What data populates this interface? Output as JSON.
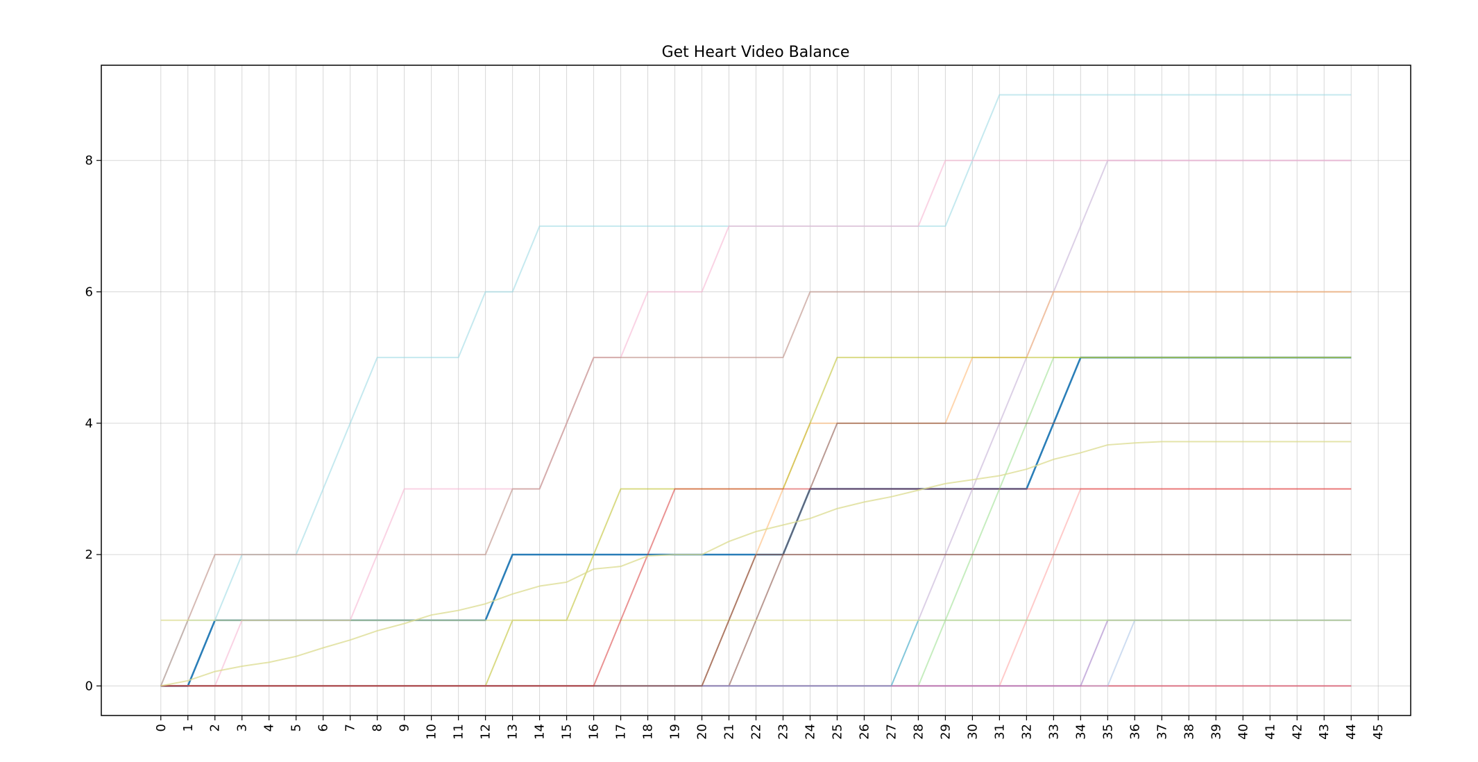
{
  "chart_data": {
    "type": "line",
    "title": "Get Heart Video Balance",
    "xlabel": "",
    "ylabel": "",
    "x": [
      0,
      1,
      2,
      3,
      4,
      5,
      6,
      7,
      8,
      9,
      10,
      11,
      12,
      13,
      14,
      15,
      16,
      17,
      18,
      19,
      20,
      21,
      22,
      23,
      24,
      25,
      26,
      27,
      28,
      29,
      30,
      31,
      32,
      33,
      34,
      35,
      36,
      37,
      38,
      39,
      40,
      41,
      42,
      43,
      44
    ],
    "xticks": [
      "0",
      "1",
      "2",
      "3",
      "4",
      "5",
      "6",
      "7",
      "8",
      "9",
      "10",
      "11",
      "12",
      "13",
      "14",
      "15",
      "16",
      "17",
      "18",
      "19",
      "20",
      "21",
      "22",
      "23",
      "24",
      "25",
      "26",
      "27",
      "28",
      "29",
      "30",
      "31",
      "32",
      "33",
      "34",
      "35",
      "36",
      "37",
      "38",
      "39",
      "40",
      "41",
      "42",
      "43",
      "44",
      "45"
    ],
    "yticks": [
      "0",
      "2",
      "4",
      "6",
      "8"
    ],
    "xlim": [
      -2.2,
      46.2
    ],
    "ylim": [
      -0.45,
      9.45
    ],
    "grid": true,
    "legend": "none",
    "series": [
      {
        "color": "#1f77b4",
        "opacity": 0.95,
        "width": 2.6,
        "values": [
          0,
          0,
          1,
          1,
          1,
          1,
          1,
          1,
          1,
          1,
          1,
          1,
          1,
          2,
          2,
          2,
          2,
          2,
          2,
          2,
          2,
          2,
          2,
          2,
          3,
          3,
          3,
          3,
          3,
          3,
          3,
          3,
          3,
          4,
          5,
          5,
          5,
          5,
          5,
          5,
          5,
          5,
          5,
          5,
          5
        ]
      },
      {
        "color": "#9edae5",
        "opacity": 0.6,
        "width": 2,
        "values": [
          0,
          1,
          1,
          2,
          2,
          2,
          3,
          4,
          5,
          5,
          5,
          5,
          6,
          6,
          7,
          7,
          7,
          7,
          7,
          7,
          7,
          7,
          7,
          7,
          7,
          7,
          7,
          7,
          7,
          7,
          8,
          9,
          9,
          9,
          9,
          9,
          9,
          9,
          9,
          9,
          9,
          9,
          9,
          9,
          9
        ]
      },
      {
        "color": "#c5b0d5",
        "opacity": 0.6,
        "width": 2,
        "values": [
          0,
          0,
          0,
          0,
          0,
          0,
          0,
          0,
          0,
          0,
          0,
          0,
          0,
          0,
          0,
          0,
          0,
          0,
          0,
          0,
          0,
          0,
          0,
          0,
          0,
          0,
          0,
          0,
          1,
          2,
          3,
          4,
          5,
          6,
          7,
          8,
          8,
          8,
          8,
          8,
          8,
          8,
          8,
          8,
          8
        ]
      },
      {
        "color": "#f7b6d2",
        "opacity": 0.6,
        "width": 2,
        "values": [
          0,
          0,
          0,
          1,
          1,
          1,
          1,
          1,
          2,
          3,
          3,
          3,
          3,
          3,
          3,
          4,
          5,
          5,
          6,
          6,
          6,
          7,
          7,
          7,
          7,
          7,
          7,
          7,
          7,
          8,
          8,
          8,
          8,
          8,
          8,
          8,
          8,
          8,
          8,
          8,
          8,
          8,
          8,
          8,
          8
        ]
      },
      {
        "color": "#c49c94",
        "opacity": 0.7,
        "width": 2,
        "values": [
          0,
          1,
          2,
          2,
          2,
          2,
          2,
          2,
          2,
          2,
          2,
          2,
          2,
          3,
          3,
          4,
          5,
          5,
          5,
          5,
          5,
          5,
          5,
          5,
          6,
          6,
          6,
          6,
          6,
          6,
          6,
          6,
          6,
          6,
          6,
          6,
          6,
          6,
          6,
          6,
          6,
          6,
          6,
          6,
          6
        ]
      },
      {
        "color": "#ff9896",
        "opacity": 0.5,
        "width": 2,
        "values": [
          0,
          0,
          0,
          0,
          0,
          0,
          0,
          0,
          0,
          0,
          0,
          0,
          0,
          0,
          0,
          0,
          0,
          0,
          0,
          0,
          0,
          0,
          0,
          0,
          0,
          0,
          0,
          0,
          0,
          0,
          0,
          0,
          1,
          2,
          3,
          3,
          3,
          3,
          3,
          3,
          3,
          3,
          3,
          3,
          3
        ]
      },
      {
        "color": "#98df8a",
        "opacity": 0.55,
        "width": 2,
        "values": [
          0,
          0,
          0,
          0,
          0,
          0,
          0,
          0,
          0,
          0,
          0,
          0,
          0,
          0,
          0,
          0,
          0,
          0,
          0,
          0,
          0,
          0,
          0,
          0,
          0,
          0,
          0,
          0,
          0,
          1,
          2,
          3,
          4,
          5,
          5,
          5,
          5,
          5,
          5,
          5,
          5,
          5,
          5,
          5,
          5
        ]
      },
      {
        "color": "#ffbb78",
        "opacity": 0.6,
        "width": 2,
        "values": [
          0,
          0,
          0,
          0,
          0,
          0,
          0,
          0,
          0,
          0,
          0,
          0,
          0,
          0,
          0,
          0,
          0,
          0,
          0,
          0,
          0,
          1,
          2,
          3,
          4,
          4,
          4,
          4,
          4,
          4,
          5,
          5,
          5,
          6,
          6,
          6,
          6,
          6,
          6,
          6,
          6,
          6,
          6,
          6,
          6
        ]
      },
      {
        "color": "#dbdb8d",
        "opacity": 0.55,
        "width": 2,
        "values": [
          0,
          0,
          0,
          0,
          0,
          0,
          0,
          0,
          0,
          0,
          0,
          0,
          0,
          0,
          0,
          0,
          0,
          0,
          0,
          0,
          0,
          0,
          0,
          0,
          0,
          0,
          0,
          0,
          0,
          0,
          0,
          0,
          0,
          0,
          0,
          0,
          0,
          0,
          0,
          0,
          0,
          0,
          0,
          0,
          0
        ]
      },
      {
        "color": "#8c564b",
        "opacity": 0.6,
        "width": 2,
        "values": [
          0,
          0,
          0,
          0,
          0,
          0,
          0,
          0,
          0,
          0,
          0,
          0,
          0,
          0,
          0,
          0,
          0,
          0,
          0,
          0,
          0,
          0,
          1,
          2,
          3,
          4,
          4,
          4,
          4,
          4,
          4,
          4,
          4,
          4,
          4,
          4,
          4,
          4,
          4,
          4,
          4,
          4,
          4,
          4,
          4
        ]
      },
      {
        "color": "#bcbd22",
        "opacity": 0.55,
        "width": 2,
        "values": [
          0,
          0,
          0,
          0,
          0,
          0,
          0,
          0,
          0,
          0,
          0,
          0,
          0,
          1,
          1,
          1,
          2,
          3,
          3,
          3,
          3,
          3,
          3,
          3,
          4,
          5,
          5,
          5,
          5,
          5,
          5,
          5,
          5,
          5,
          5,
          5,
          5,
          5,
          5,
          5,
          5,
          5,
          5,
          5,
          5
        ]
      },
      {
        "color": "#d62728",
        "opacity": 0.55,
        "width": 2,
        "values": [
          0,
          0,
          0,
          0,
          0,
          0,
          0,
          0,
          0,
          0,
          0,
          0,
          0,
          0,
          0,
          0,
          0,
          0,
          0,
          0,
          0,
          0,
          0,
          0,
          0,
          0,
          0,
          0,
          0,
          0,
          0,
          0,
          0,
          0,
          0,
          0,
          0,
          0,
          0,
          0,
          0,
          0,
          0,
          0,
          0
        ]
      },
      {
        "color": "#aec7e8",
        "opacity": 0.6,
        "width": 2,
        "values": [
          0,
          0,
          0,
          0,
          0,
          0,
          0,
          0,
          0,
          0,
          0,
          0,
          0,
          0,
          0,
          0,
          0,
          0,
          0,
          0,
          0,
          0,
          0,
          0,
          0,
          0,
          0,
          0,
          0,
          0,
          0,
          0,
          0,
          0,
          0,
          0,
          1,
          1,
          1,
          1,
          1,
          1,
          1,
          1,
          1
        ]
      },
      {
        "color": "#9467bd",
        "opacity": 0.5,
        "width": 2,
        "values": [
          0,
          0,
          0,
          0,
          0,
          0,
          0,
          0,
          0,
          0,
          0,
          0,
          0,
          0,
          0,
          0,
          0,
          0,
          0,
          0,
          0,
          0,
          0,
          0,
          0,
          0,
          0,
          0,
          0,
          0,
          0,
          0,
          0,
          0,
          0,
          1,
          1,
          1,
          1,
          1,
          1,
          1,
          1,
          1,
          1
        ]
      },
      {
        "color": "#17becf",
        "opacity": 0.45,
        "width": 2,
        "values": [
          0,
          0,
          0,
          0,
          0,
          0,
          0,
          0,
          0,
          0,
          0,
          0,
          0,
          0,
          0,
          0,
          0,
          0,
          0,
          0,
          0,
          0,
          0,
          0,
          0,
          0,
          0,
          0,
          1,
          1,
          1,
          1,
          1,
          1,
          1,
          1,
          1,
          1,
          1,
          1,
          1,
          1,
          1,
          1,
          1
        ]
      },
      {
        "color": "#e377c2",
        "opacity": 0.4,
        "width": 2,
        "values": [
          0,
          0,
          0,
          0,
          0,
          0,
          0,
          0,
          0,
          0,
          0,
          0,
          0,
          0,
          0,
          0,
          0,
          0,
          0,
          0,
          0,
          0,
          0,
          0,
          0,
          0,
          0,
          0,
          0,
          0,
          0,
          0,
          0,
          0,
          0,
          0,
          0,
          0,
          0,
          0,
          0,
          0,
          0,
          0,
          0
        ]
      },
      {
        "color": "#dbdb8d",
        "opacity": 0.7,
        "width": 2,
        "values": [
          1,
          1,
          1,
          1,
          1,
          1,
          1,
          1,
          1,
          1,
          1,
          1,
          1,
          1,
          1,
          1,
          1,
          1,
          1,
          1,
          1,
          1,
          1,
          1,
          1,
          1,
          1,
          1,
          1,
          1,
          1,
          1,
          1,
          1,
          1,
          1,
          1,
          1,
          1,
          1,
          1,
          1,
          1,
          1,
          1
        ]
      },
      {
        "color": "#8c564b",
        "opacity": 0.7,
        "width": 2,
        "values": [
          0,
          0,
          0,
          0,
          0,
          0,
          0,
          0,
          0,
          0,
          0,
          0,
          0,
          0,
          0,
          0,
          0,
          0,
          0,
          0,
          0,
          1,
          2,
          2,
          2,
          2,
          2,
          2,
          2,
          2,
          2,
          2,
          2,
          2,
          2,
          2,
          2,
          2,
          2,
          2,
          2,
          2,
          2,
          2,
          2
        ]
      },
      {
        "color": "#d62728",
        "opacity": 0.5,
        "width": 2,
        "values": [
          0,
          0,
          0,
          0,
          0,
          0,
          0,
          0,
          0,
          0,
          0,
          0,
          0,
          0,
          0,
          0,
          0,
          1,
          2,
          3,
          3,
          3,
          3,
          3,
          3,
          3,
          3,
          3,
          3,
          3,
          3,
          3,
          3,
          3,
          3,
          3,
          3,
          3,
          3,
          3,
          3,
          3,
          3,
          3,
          3
        ]
      },
      {
        "color": "#dbdb8d",
        "opacity": 0.75,
        "width": 2,
        "values": [
          0,
          0.08,
          0.22,
          0.3,
          0.36,
          0.45,
          0.58,
          0.7,
          0.84,
          0.95,
          1.08,
          1.15,
          1.25,
          1.4,
          1.52,
          1.58,
          1.78,
          1.82,
          1.98,
          2.0,
          2.0,
          2.2,
          2.35,
          2.45,
          2.55,
          2.7,
          2.8,
          2.88,
          2.98,
          3.08,
          3.14,
          3.2,
          3.3,
          3.45,
          3.55,
          3.67,
          3.7,
          3.72,
          3.72,
          3.72,
          3.72,
          3.72,
          3.72,
          3.72,
          3.72
        ]
      }
    ]
  }
}
